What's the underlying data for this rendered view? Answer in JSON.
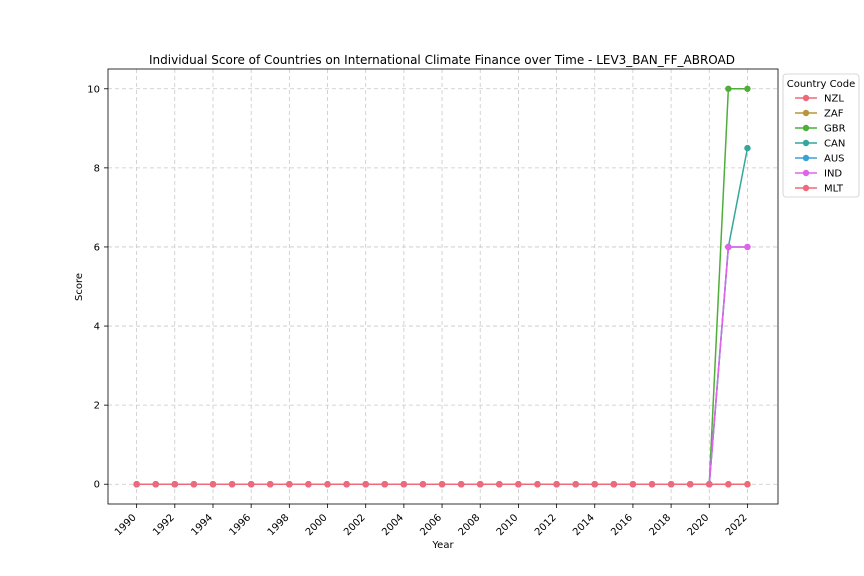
{
  "chart_data": {
    "type": "line",
    "title": "Individual Score of Countries on International Climate Finance over Time - LEV3_BAN_FF_ABROAD",
    "xlabel": "Year",
    "ylabel": "Score",
    "xlim": [
      1988.5,
      2023.6
    ],
    "ylim": [
      -0.5,
      10.5
    ],
    "x_ticks": [
      1990,
      1992,
      1994,
      1996,
      1998,
      2000,
      2002,
      2004,
      2006,
      2008,
      2010,
      2012,
      2014,
      2016,
      2018,
      2020,
      2022
    ],
    "y_ticks": [
      0,
      2,
      4,
      6,
      8,
      10
    ],
    "grid": true,
    "legend": {
      "title": "Country Code",
      "placement": "outside-top-right"
    },
    "x": [
      1990,
      1991,
      1992,
      1993,
      1994,
      1995,
      1996,
      1997,
      1998,
      1999,
      2000,
      2001,
      2002,
      2003,
      2004,
      2005,
      2006,
      2007,
      2008,
      2009,
      2010,
      2011,
      2012,
      2013,
      2014,
      2015,
      2016,
      2017,
      2018,
      2019,
      2020,
      2021,
      2022
    ],
    "series": [
      {
        "name": "NZL",
        "color": "#f0697a",
        "values": [
          0,
          0,
          0,
          0,
          0,
          0,
          0,
          0,
          0,
          0,
          0,
          0,
          0,
          0,
          0,
          0,
          0,
          0,
          0,
          0,
          0,
          0,
          0,
          0,
          0,
          0,
          0,
          0,
          0,
          0,
          0,
          0,
          0
        ]
      },
      {
        "name": "ZAF",
        "color": "#b8973a",
        "values": [
          0,
          0,
          0,
          0,
          0,
          0,
          0,
          0,
          0,
          0,
          0,
          0,
          0,
          0,
          0,
          0,
          0,
          0,
          0,
          0,
          0,
          0,
          0,
          0,
          0,
          0,
          0,
          0,
          0,
          0,
          0,
          0,
          0
        ]
      },
      {
        "name": "GBR",
        "color": "#4fae3a",
        "values": [
          0,
          0,
          0,
          0,
          0,
          0,
          0,
          0,
          0,
          0,
          0,
          0,
          0,
          0,
          0,
          0,
          0,
          0,
          0,
          0,
          0,
          0,
          0,
          0,
          0,
          0,
          0,
          0,
          0,
          0,
          0,
          10,
          10
        ]
      },
      {
        "name": "CAN",
        "color": "#34a79a",
        "values": [
          0,
          0,
          0,
          0,
          0,
          0,
          0,
          0,
          0,
          0,
          0,
          0,
          0,
          0,
          0,
          0,
          0,
          0,
          0,
          0,
          0,
          0,
          0,
          0,
          0,
          0,
          0,
          0,
          0,
          0,
          0,
          6,
          8.5
        ]
      },
      {
        "name": "AUS",
        "color": "#3aa0d8",
        "values": [
          0,
          0,
          0,
          0,
          0,
          0,
          0,
          0,
          0,
          0,
          0,
          0,
          0,
          0,
          0,
          0,
          0,
          0,
          0,
          0,
          0,
          0,
          0,
          0,
          0,
          0,
          0,
          0,
          0,
          0,
          0,
          6,
          6
        ]
      },
      {
        "name": "IND",
        "color": "#e063e8",
        "values": [
          0,
          0,
          0,
          0,
          0,
          0,
          0,
          0,
          0,
          0,
          0,
          0,
          0,
          0,
          0,
          0,
          0,
          0,
          0,
          0,
          0,
          0,
          0,
          0,
          0,
          0,
          0,
          0,
          0,
          0,
          0,
          6,
          6
        ]
      },
      {
        "name": "MLT",
        "color": "#f0697a",
        "values": [
          0,
          0,
          0,
          0,
          0,
          0,
          0,
          0,
          0,
          0,
          0,
          0,
          0,
          0,
          0,
          0,
          0,
          0,
          0,
          0,
          0,
          0,
          0,
          0,
          0,
          0,
          0,
          0,
          0,
          0,
          0,
          0,
          0
        ]
      }
    ]
  }
}
